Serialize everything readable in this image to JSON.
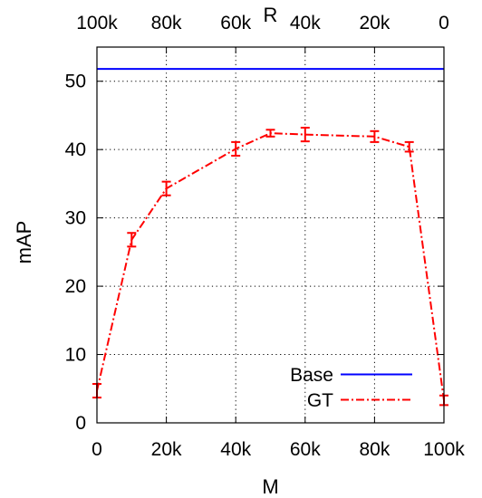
{
  "chart_data": {
    "type": "line",
    "xlabel": "M",
    "ylabel": "mAP",
    "x2label": "R",
    "xlim": [
      0,
      100000
    ],
    "ylim": [
      0,
      55
    ],
    "grid": true,
    "legend_position": "bottom-right",
    "x_ticks": [
      {
        "value": 0,
        "label": "0"
      },
      {
        "value": 20000,
        "label": "20k"
      },
      {
        "value": 40000,
        "label": "40k"
      },
      {
        "value": 60000,
        "label": "60k"
      },
      {
        "value": 80000,
        "label": "80k"
      },
      {
        "value": 100000,
        "label": "100k"
      }
    ],
    "x2_ticks": [
      {
        "value": 0,
        "label": "100k"
      },
      {
        "value": 20000,
        "label": "80k"
      },
      {
        "value": 40000,
        "label": "60k"
      },
      {
        "value": 60000,
        "label": "40k"
      },
      {
        "value": 80000,
        "label": "20k"
      },
      {
        "value": 100000,
        "label": "0"
      }
    ],
    "y_ticks": [
      {
        "value": 0,
        "label": "0"
      },
      {
        "value": 10,
        "label": "10"
      },
      {
        "value": 20,
        "label": "20"
      },
      {
        "value": 30,
        "label": "30"
      },
      {
        "value": 40,
        "label": "40"
      },
      {
        "value": 50,
        "label": "50"
      }
    ],
    "series": [
      {
        "name": "Base",
        "color": "#0000ff",
        "style": "solid",
        "x": [
          0,
          100000
        ],
        "y": [
          51.8,
          51.8
        ]
      },
      {
        "name": "GT",
        "color": "#ff0000",
        "style": "dash-dot",
        "error_bars": true,
        "x": [
          0,
          10000,
          20000,
          40000,
          50000,
          60000,
          80000,
          90000,
          100000
        ],
        "y": [
          4.7,
          26.8,
          34.3,
          40.1,
          42.4,
          42.2,
          41.9,
          40.4,
          3.3
        ],
        "err": [
          1.0,
          1.0,
          1.0,
          1.0,
          0.5,
          1.0,
          0.8,
          0.7,
          0.7
        ]
      }
    ]
  }
}
